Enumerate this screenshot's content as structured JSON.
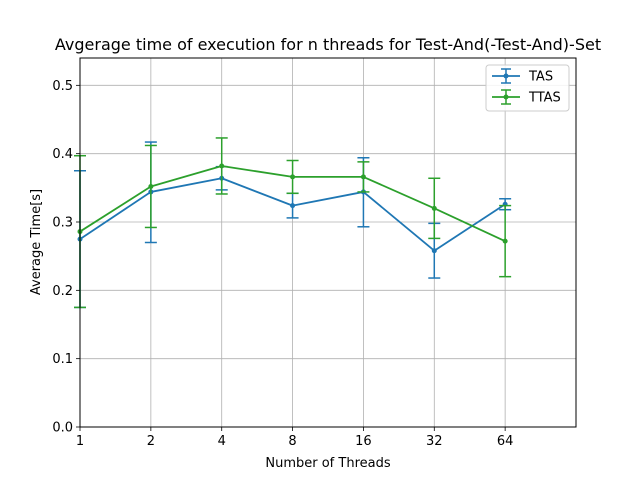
{
  "chart_data": {
    "type": "line",
    "title": "Avgerage time of execution for n threads for Test-And(-Test-And)-Set",
    "xlabel": "Number of Threads",
    "ylabel": "Average Time[s]",
    "x_scale": "log2",
    "x": [
      1,
      2,
      4,
      8,
      16,
      32,
      64
    ],
    "x_tick_labels": [
      "1",
      "2",
      "4",
      "8",
      "16",
      "32",
      "64"
    ],
    "xlim": [
      1,
      128
    ],
    "ylim": [
      0,
      0.54
    ],
    "y_ticks": [
      0.0,
      0.1,
      0.2,
      0.3,
      0.4,
      0.5
    ],
    "y_tick_labels": [
      "0.0",
      "0.1",
      "0.2",
      "0.3",
      "0.4",
      "0.5"
    ],
    "grid": true,
    "legend_position": "top-right",
    "series": [
      {
        "name": "TAS",
        "color": "#1f77b4",
        "values": [
          0.275,
          0.344,
          0.364,
          0.324,
          0.344,
          0.258,
          0.326
        ],
        "err_low": [
          0.175,
          0.27,
          0.347,
          0.306,
          0.293,
          0.218,
          0.318
        ],
        "err_high": [
          0.375,
          0.417,
          0.381,
          0.342,
          0.394,
          0.298,
          0.334
        ]
      },
      {
        "name": "TTAS",
        "color": "#2ca02c",
        "values": [
          0.286,
          0.352,
          0.382,
          0.366,
          0.366,
          0.32,
          0.272
        ],
        "err_low": [
          0.175,
          0.292,
          0.341,
          0.342,
          0.344,
          0.276,
          0.22
        ],
        "err_high": [
          0.397,
          0.412,
          0.423,
          0.39,
          0.388,
          0.364,
          0.324
        ]
      }
    ]
  }
}
